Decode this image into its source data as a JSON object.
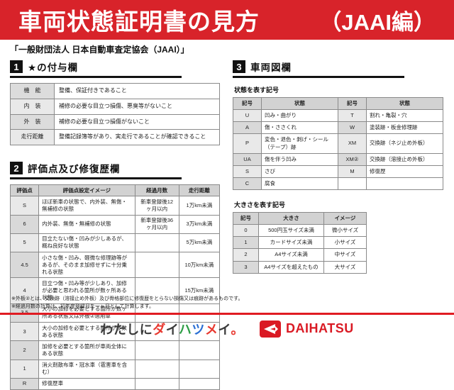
{
  "banner": {
    "title": "車両状態証明書の見方",
    "edition": "（JAAI編）"
  },
  "subtitle": "「一般財団法人 日本自動車査定協会（JAAI）」",
  "section1": {
    "number": "1",
    "title": "★の付与欄",
    "rows": [
      [
        "機　能",
        "整備、保証付きであること"
      ],
      [
        "内　装",
        "補修の必要な目立つ損傷、悪臭等がないこと"
      ],
      [
        "外　装",
        "補修の必要な目立つ損傷がないこと"
      ],
      [
        "走行距離",
        "整備記録簿等があり、実走行であることが確認できること"
      ]
    ]
  },
  "section2": {
    "number": "2",
    "title": "評価点及び修復歴欄",
    "headers": [
      "評価点",
      "評価点設定イメージ",
      "経過月数",
      "走行距離"
    ],
    "rows": [
      [
        "S",
        "ほぼ新車の状態で、内外装、無傷・無補修の状態",
        "新車登録後12ヶ月以内",
        "1万km未満"
      ],
      [
        "6",
        "内外装、無傷・無補修の状態",
        "新車登録後36ヶ月以内",
        "3万km未満"
      ],
      [
        "5",
        "目立たない傷・凹みが少しあるが、概ね良好な状態",
        "",
        "5万km未満"
      ],
      [
        "4.5",
        "小さな傷・凹み、軽微な修理跡等があるが、そのまま加修せずに十分乗れる状態",
        "",
        "10万km未満"
      ],
      [
        "4",
        "目立つ傷・凹み等が少しあり、加修が必要と思われる箇所が数ヶ所ある状態",
        "",
        "15万km未満"
      ],
      [
        "3.5",
        "大小の加修を必要とする箇所が数ヶ所ある状態又は外板②適用車",
        "",
        ""
      ],
      [
        "3",
        "大小の加修を必要とする箇所が多数ある状態",
        "",
        ""
      ],
      [
        "2",
        "加修を必要とする箇所が車両全体にある状態",
        "",
        ""
      ],
      [
        "1",
        "消火剤散布車・冠水車（雹害車を含む）",
        "",
        ""
      ],
      [
        "R",
        "修復歴車",
        "",
        ""
      ]
    ]
  },
  "section3": {
    "number": "3",
    "title": "車両図欄",
    "state_label": "状態を表す記号",
    "state_headers": [
      "記号",
      "状態",
      "記号",
      "状態"
    ],
    "state_rows": [
      [
        "U",
        "凹み・曲がり",
        "T",
        "割れ・亀裂・穴"
      ],
      [
        "A",
        "傷・ささくれ",
        "W",
        "塗装跡・板金修理跡"
      ],
      [
        "P",
        "変色・退色・剥げ・シール（テープ）跡",
        "XM",
        "交換跡（ネジ止め外板）"
      ],
      [
        "UA",
        "傷を伴う凹み",
        "XM②",
        "交換跡（溶接止め外板）"
      ],
      [
        "S",
        "さび",
        "M",
        "修復歴"
      ],
      [
        "C",
        "腐食",
        "",
        ""
      ]
    ],
    "size_label": "大きさを表す記号",
    "size_headers": [
      "記号",
      "大きさ",
      "イメージ"
    ],
    "size_rows": [
      [
        "0",
        "500円玉サイズ未満",
        "微小サイズ"
      ],
      [
        "1",
        "カードサイズ未満",
        "小サイズ"
      ],
      [
        "2",
        "A4サイズ未満",
        "中サイズ"
      ],
      [
        "3",
        "A4サイズを超えたもの",
        "大サイズ"
      ]
    ]
  },
  "notes": [
    "※外板②とは、交換跡（溶接止め外板）及び骨格部位に修復歴をとらない損傷又は痕跡があるものです。",
    "※経過月数の計算は、初年度登録月を一ヶ月として計算します。"
  ],
  "footer": {
    "slogan_chars": [
      [
        "わ",
        "#3a3a3a"
      ],
      [
        "た",
        "#3a3a3a"
      ],
      [
        "し",
        "#3a3a3a"
      ],
      [
        "に",
        "#3a3a3a"
      ],
      [
        "ダ",
        "#e8382f"
      ],
      [
        "イ",
        "#3a3a3a"
      ],
      [
        "ハ",
        "#2e9e46"
      ],
      [
        "ツ",
        "#2b6fd4"
      ],
      [
        "メ",
        "#e8382f"
      ],
      [
        "イ",
        "#3a3a3a"
      ],
      [
        "。",
        "#e8382f"
      ]
    ],
    "daihatsu_label": "DAIHATSU"
  },
  "colors": {
    "banner_red": "#d8232a",
    "line_red": "#e01b22",
    "section_black": "#111111"
  }
}
